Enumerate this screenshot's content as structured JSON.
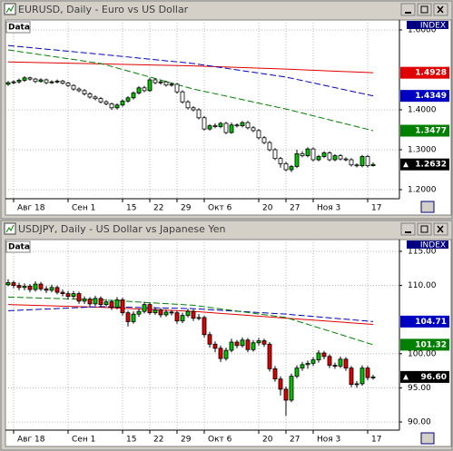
{
  "chart_data": [
    {
      "type": "candlestick",
      "title": "EURUSD, Daily - Euro vs US Dollar",
      "panel_label": "Data",
      "index_label": "INDEX",
      "categories": [
        null,
        "Авг 18",
        null,
        null,
        null,
        null,
        null,
        null,
        null,
        null,
        null,
        "Сен 1",
        null,
        null,
        null,
        null,
        null,
        null,
        null,
        null,
        null,
        "15",
        null,
        null,
        null,
        null,
        "22",
        null,
        null,
        null,
        null,
        "29",
        null,
        null,
        null,
        null,
        "Окт 6",
        null,
        null,
        null,
        null,
        null,
        null,
        null,
        null,
        null,
        "20",
        null,
        null,
        null,
        null,
        "27",
        null,
        null,
        null,
        null,
        "Ноя 3",
        null,
        null,
        null,
        null,
        null,
        null,
        null,
        null,
        null,
        "17",
        null
      ],
      "open": [
        1.464,
        1.468,
        1.47,
        1.474,
        1.48,
        1.477,
        1.471,
        1.475,
        1.468,
        1.47,
        1.472,
        1.467,
        1.461,
        1.452,
        1.448,
        1.44,
        1.432,
        1.428,
        1.42,
        1.415,
        1.405,
        1.412,
        1.422,
        1.43,
        1.442,
        1.455,
        1.448,
        1.475,
        1.468,
        1.47,
        1.462,
        1.464,
        1.445,
        1.42,
        1.405,
        1.4,
        1.38,
        1.352,
        1.36,
        1.358,
        1.366,
        1.343,
        1.362,
        1.36,
        1.368,
        1.355,
        1.348,
        1.33,
        1.318,
        1.3,
        1.278,
        1.265,
        1.25,
        1.258,
        1.29,
        1.285,
        1.302,
        1.275,
        1.283,
        1.292,
        1.275,
        1.285,
        1.277,
        1.275,
        1.262,
        1.26,
        1.283,
        1.26
      ],
      "high": [
        1.472,
        1.474,
        1.478,
        1.484,
        1.483,
        1.48,
        1.479,
        1.478,
        1.474,
        1.476,
        1.475,
        1.47,
        1.464,
        1.456,
        1.452,
        1.444,
        1.436,
        1.432,
        1.424,
        1.418,
        1.416,
        1.426,
        1.434,
        1.446,
        1.459,
        1.46,
        1.48,
        1.479,
        1.474,
        1.473,
        1.468,
        1.467,
        1.449,
        1.424,
        1.409,
        1.404,
        1.384,
        1.364,
        1.366,
        1.37,
        1.37,
        1.368,
        1.366,
        1.372,
        1.372,
        1.359,
        1.352,
        1.334,
        1.322,
        1.304,
        1.282,
        1.27,
        1.262,
        1.3,
        1.296,
        1.306,
        1.306,
        1.287,
        1.296,
        1.296,
        1.289,
        1.289,
        1.281,
        1.279,
        1.266,
        1.287,
        1.287,
        1.268
      ],
      "low": [
        1.46,
        1.464,
        1.466,
        1.47,
        1.473,
        1.467,
        1.468,
        1.464,
        1.465,
        1.466,
        1.463,
        1.457,
        1.448,
        1.444,
        1.436,
        1.428,
        1.424,
        1.416,
        1.411,
        1.4,
        1.401,
        1.408,
        1.418,
        1.426,
        1.438,
        1.444,
        1.445,
        1.464,
        1.463,
        1.458,
        1.458,
        1.441,
        1.416,
        1.401,
        1.396,
        1.376,
        1.348,
        1.348,
        1.354,
        1.354,
        1.339,
        1.34,
        1.356,
        1.356,
        1.351,
        1.344,
        1.326,
        1.314,
        1.296,
        1.274,
        1.255,
        1.246,
        1.244,
        1.254,
        1.281,
        1.281,
        1.271,
        1.271,
        1.279,
        1.271,
        1.271,
        1.273,
        1.271,
        1.258,
        1.256,
        1.256,
        1.256,
        1.258
      ],
      "close": [
        1.468,
        1.47,
        1.474,
        1.48,
        1.477,
        1.471,
        1.475,
        1.468,
        1.47,
        1.472,
        1.467,
        1.461,
        1.452,
        1.448,
        1.44,
        1.432,
        1.428,
        1.42,
        1.415,
        1.405,
        1.412,
        1.422,
        1.43,
        1.442,
        1.455,
        1.448,
        1.475,
        1.468,
        1.47,
        1.462,
        1.464,
        1.445,
        1.42,
        1.405,
        1.4,
        1.38,
        1.352,
        1.36,
        1.358,
        1.366,
        1.343,
        1.362,
        1.36,
        1.368,
        1.355,
        1.348,
        1.33,
        1.318,
        1.3,
        1.278,
        1.265,
        1.25,
        1.258,
        1.29,
        1.285,
        1.302,
        1.275,
        1.283,
        1.292,
        1.275,
        1.285,
        1.277,
        1.275,
        1.262,
        1.26,
        1.283,
        1.26,
        1.2632
      ],
      "up_color": "#00c000",
      "down_color": "#ffffff",
      "lines": [
        {
          "color": "#e00000",
          "dashed": false,
          "show_label": true,
          "x": [
            0,
            17,
            34,
            51,
            67
          ],
          "values": [
            1.52,
            1.515,
            1.51,
            1.502,
            1.4928
          ]
        },
        {
          "color": "#0000c0",
          "dashed": true,
          "show_label": true,
          "x": [
            0,
            17,
            34,
            51,
            67
          ],
          "values": [
            1.561,
            1.539,
            1.516,
            1.482,
            1.4349
          ]
        },
        {
          "color": "#008000",
          "dashed": true,
          "show_label": true,
          "x": [
            0,
            17,
            34,
            51,
            67
          ],
          "values": [
            1.55,
            1.516,
            1.452,
            1.402,
            1.3477
          ]
        }
      ],
      "ylim": [
        1.1773,
        1.625
      ],
      "yticks": [
        {
          "value": 1.6,
          "label": "1.6000"
        },
        {
          "value": 1.4,
          "label": "1.4000"
        },
        {
          "value": 1.3,
          "label": "1.3000"
        },
        {
          "value": 1.2,
          "label": "1.2000"
        }
      ],
      "grid": true
    },
    {
      "type": "candlestick",
      "title": "USDJPY, Daily - US Dollar vs Japanese Yen",
      "panel_label": "Data",
      "index_label": "INDEX",
      "categories": [
        null,
        "Авг 18",
        null,
        null,
        null,
        null,
        null,
        null,
        null,
        null,
        null,
        "Сен 1",
        null,
        null,
        null,
        null,
        null,
        null,
        null,
        null,
        null,
        "15",
        null,
        null,
        null,
        null,
        "22",
        null,
        null,
        null,
        null,
        "29",
        null,
        null,
        null,
        null,
        "Окт 6",
        null,
        null,
        null,
        null,
        null,
        null,
        null,
        null,
        null,
        "20",
        null,
        null,
        null,
        null,
        "27",
        null,
        null,
        null,
        null,
        "Ноя 3",
        null,
        null,
        null,
        null,
        null,
        null,
        null,
        null,
        null,
        "17",
        null
      ],
      "open": [
        110.1,
        110.4,
        110.0,
        109.7,
        109.9,
        109.4,
        110.2,
        109.5,
        109.3,
        109.7,
        109.0,
        108.8,
        108.4,
        108.8,
        107.7,
        108.0,
        107.3,
        108.1,
        107.2,
        107.6,
        106.8,
        107.9,
        106.0,
        104.7,
        105.8,
        106.2,
        107.2,
        106.0,
        106.4,
        105.7,
        106.1,
        106.0,
        104.8,
        105.6,
        106.2,
        105.2,
        105.3,
        102.8,
        101.4,
        100.8,
        99.3,
        100.5,
        101.7,
        101.2,
        102.0,
        100.6,
        101.6,
        101.9,
        101.4,
        97.8,
        96.3,
        94.8,
        93.2,
        96.7,
        97.9,
        98.4,
        98.6,
        99.1,
        100.1,
        99.6,
        98.3,
        98.2,
        99.2,
        97.9,
        95.5,
        95.6,
        97.9,
        96.5
      ],
      "high": [
        110.9,
        110.7,
        110.4,
        110.3,
        110.2,
        110.6,
        110.5,
        109.9,
        110.1,
        110.0,
        109.4,
        109.2,
        109.2,
        109.1,
        108.4,
        108.3,
        108.5,
        108.4,
        108.0,
        107.9,
        108.3,
        108.2,
        106.3,
        106.2,
        106.6,
        107.6,
        107.5,
        106.8,
        106.7,
        106.5,
        106.4,
        106.3,
        106.0,
        106.6,
        106.5,
        105.8,
        105.6,
        103.2,
        101.8,
        101.2,
        100.9,
        102.2,
        102.0,
        102.4,
        102.3,
        102.0,
        102.3,
        102.2,
        101.7,
        98.2,
        96.7,
        95.2,
        97.1,
        98.3,
        98.8,
        99.0,
        99.5,
        100.5,
        100.4,
        99.9,
        98.7,
        99.6,
        99.5,
        98.2,
        96.0,
        98.3,
        98.2,
        96.9
      ],
      "low": [
        109.9,
        109.6,
        109.3,
        109.3,
        109.0,
        109.1,
        109.2,
        108.9,
        109.0,
        108.7,
        108.4,
        108.0,
        108.1,
        107.3,
        107.3,
        106.9,
        107.0,
        106.8,
        106.9,
        106.4,
        106.5,
        105.6,
        104.0,
        104.4,
        105.4,
        105.9,
        105.7,
        105.7,
        105.3,
        105.4,
        105.6,
        104.4,
        104.5,
        105.3,
        104.8,
        104.9,
        102.4,
        100.9,
        100.2,
        98.8,
        99.0,
        100.2,
        100.8,
        100.9,
        100.2,
        100.3,
        101.2,
        101.0,
        97.4,
        95.9,
        93.9,
        90.9,
        92.9,
        96.4,
        97.5,
        97.8,
        98.2,
        98.7,
        99.2,
        97.9,
        97.8,
        97.9,
        97.5,
        95.1,
        95.0,
        95.3,
        96.1,
        96.2
      ],
      "close": [
        110.4,
        110.0,
        109.7,
        109.9,
        109.4,
        110.2,
        109.5,
        109.3,
        109.7,
        109.0,
        108.8,
        108.4,
        108.8,
        107.7,
        108.0,
        107.3,
        108.1,
        107.2,
        107.6,
        106.8,
        107.9,
        106.0,
        104.7,
        105.8,
        106.2,
        107.2,
        106.0,
        106.4,
        105.7,
        106.1,
        106.0,
        104.8,
        105.6,
        106.2,
        105.2,
        105.3,
        102.8,
        101.4,
        100.8,
        99.3,
        100.5,
        101.7,
        101.2,
        102.0,
        100.6,
        101.6,
        101.9,
        101.4,
        97.8,
        96.3,
        94.8,
        93.2,
        96.7,
        97.9,
        98.4,
        98.6,
        99.1,
        100.1,
        99.6,
        98.3,
        98.2,
        99.2,
        97.9,
        95.5,
        95.6,
        97.9,
        96.5,
        96.6
      ],
      "close_label": "96.60",
      "up_color": "#00c000",
      "down_color": "#e00000",
      "lines": [
        {
          "color": "#e00000",
          "dashed": false,
          "show_label": false,
          "x": [
            0,
            17,
            34,
            51,
            67
          ],
          "values": [
            107.2,
            106.8,
            106.2,
            105.2,
            104.3
          ]
        },
        {
          "color": "#0000c0",
          "dashed": true,
          "show_label": true,
          "x": [
            0,
            17,
            34,
            51,
            67
          ],
          "values": [
            106.3,
            106.9,
            106.6,
            105.8,
            104.71
          ]
        },
        {
          "color": "#008000",
          "dashed": true,
          "show_label": true,
          "x": [
            0,
            17,
            34,
            51,
            67
          ],
          "values": [
            108.3,
            107.9,
            107.1,
            105.3,
            101.32
          ]
        }
      ],
      "ylim": [
        88.81,
        116.72
      ],
      "yticks": [
        {
          "value": 115,
          "label": "115.00"
        },
        {
          "value": 110,
          "label": "110.00"
        },
        {
          "value": 100,
          "label": "100.00"
        },
        {
          "value": 95,
          "label": "95.00"
        },
        {
          "value": 90,
          "label": "90.00"
        }
      ],
      "grid": true
    }
  ]
}
